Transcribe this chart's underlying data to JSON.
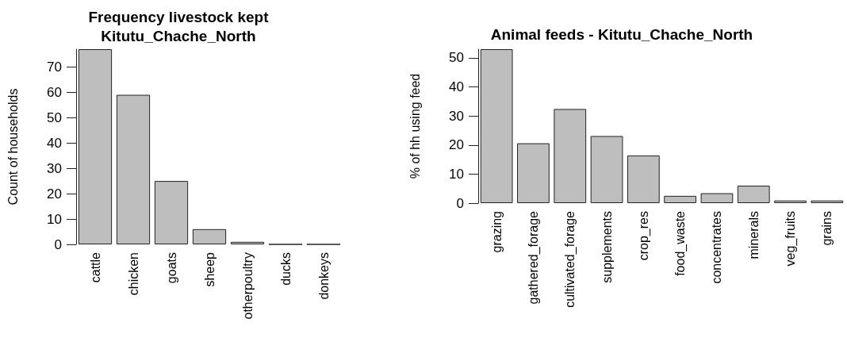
{
  "chart_data": [
    {
      "type": "bar",
      "title": "Frequency livestock kept\nKitutu_Chache_North",
      "ylabel": "Count of households",
      "categories": [
        "cattle",
        "chicken",
        "goats",
        "sheep",
        "otherpoultry",
        "ducks",
        "donkeys"
      ],
      "values": [
        77,
        59,
        25,
        6,
        1,
        0,
        0
      ],
      "color": "#bebebe",
      "ylim": [
        0,
        77
      ],
      "yticks": [
        0,
        10,
        20,
        30,
        40,
        50,
        60,
        70
      ],
      "grid": false
    },
    {
      "type": "bar",
      "title": "Animal feeds - Kitutu_Chache_North",
      "ylabel": "% of hh using feed",
      "categories": [
        "grazing",
        "gathered_forage",
        "cultivated_forage",
        "supplements",
        "crop_res",
        "food_waste",
        "concentrates",
        "minerals",
        "veg_fruits",
        "grains"
      ],
      "values": [
        53,
        20.6,
        32.4,
        23.1,
        16.4,
        2.5,
        3.4,
        6,
        0.9,
        0.9
      ],
      "color": "#bebebe",
      "ylim": [
        0,
        53
      ],
      "yticks": [
        0,
        10,
        20,
        30,
        40,
        50
      ],
      "grid": false
    }
  ]
}
